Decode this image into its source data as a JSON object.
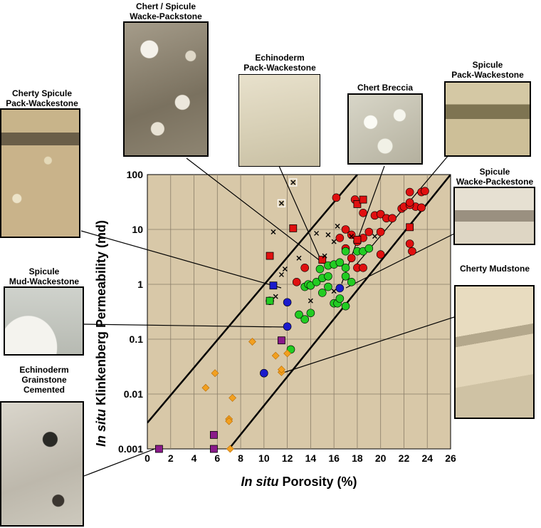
{
  "samples": [
    {
      "name": "chert-spicule-wacke-packstone",
      "line1": "Chert / Spicule",
      "line2": "Wacke-Packstone"
    },
    {
      "name": "echinoderm-pack-wackestone",
      "line1": "Echinoderm",
      "line2": "Pack-Wackestone"
    },
    {
      "name": "chert-breccia",
      "line1": "Chert Breccia",
      "line2": ""
    },
    {
      "name": "spicule-pack-wackestone",
      "line1": "Spicule",
      "line2": "Pack-Wackestone"
    },
    {
      "name": "cherty-spicule-pack-wackestone",
      "line1": "Cherty Spicule",
      "line2": "Pack-Wackestone"
    },
    {
      "name": "spicule-wacke-packestone",
      "line1": "Spicule",
      "line2": "Wacke-Packestone"
    },
    {
      "name": "spicule-mud-wackestone",
      "line1": "Spicule",
      "line2": "Mud-Wackestone"
    },
    {
      "name": "cherty-mudstone",
      "line1": "Cherty Mudstone",
      "line2": ""
    },
    {
      "name": "echinoderm-grainstone-cemented",
      "line1": "Echinoderm",
      "line2": "Grainstone",
      "line3": "Cemented"
    }
  ],
  "colors": {
    "plot_bg": "#d8c8a8",
    "grid": "#8a7d68",
    "red": "#e01010",
    "green": "#22cc22",
    "blue": "#1a1acc",
    "orange": "#f2a020",
    "purple": "#8a1a8a"
  },
  "chart_data": {
    "type": "scatter",
    "title": "",
    "xlabel_italic": "In situ",
    "xlabel_rest": "Porosity (%)",
    "ylabel_italic": "In situ",
    "ylabel_rest": "Klinkenberg Permeability (md)",
    "xlim": [
      0,
      26
    ],
    "ylim_log": [
      0.001,
      100
    ],
    "x_ticks": [
      "0",
      "2",
      "4",
      "6",
      "8",
      "10",
      "12",
      "14",
      "16",
      "18",
      "20",
      "22",
      "24",
      "26"
    ],
    "y_ticks": [
      "0.001",
      "0.01",
      "0.1",
      "1",
      "10",
      "100"
    ],
    "grid": true,
    "trend_lines": [
      {
        "x": [
          0,
          18
        ],
        "y": [
          0.003,
          100
        ]
      },
      {
        "x": [
          7,
          26
        ],
        "y": [
          0.001,
          100
        ]
      }
    ],
    "series": [
      {
        "marker": "circle",
        "color": "red",
        "points": [
          [
            16.2,
            38
          ],
          [
            17.8,
            35
          ],
          [
            18.5,
            20
          ],
          [
            19.5,
            18
          ],
          [
            20,
            19
          ],
          [
            20.5,
            16
          ],
          [
            21,
            16
          ],
          [
            21.8,
            24
          ],
          [
            22,
            26
          ],
          [
            22.5,
            48
          ],
          [
            23,
            26
          ],
          [
            23.5,
            48
          ],
          [
            23.8,
            50
          ],
          [
            23.5,
            25
          ],
          [
            22.5,
            28
          ],
          [
            22.5,
            31
          ],
          [
            17,
            10
          ],
          [
            17.5,
            8
          ],
          [
            18,
            6
          ],
          [
            18.5,
            7
          ],
          [
            19,
            9
          ],
          [
            20,
            9
          ],
          [
            20,
            3.5
          ],
          [
            22.5,
            5.5
          ],
          [
            22.7,
            4
          ],
          [
            17,
            4.5
          ],
          [
            17.5,
            3
          ],
          [
            18,
            2
          ],
          [
            18.5,
            2
          ],
          [
            16.5,
            7
          ],
          [
            13.5,
            2
          ],
          [
            12.8,
            1.1
          ]
        ]
      },
      {
        "marker": "square",
        "color": "red",
        "points": [
          [
            10.5,
            3.3
          ],
          [
            12.5,
            10.5
          ],
          [
            15,
            2.8
          ],
          [
            18,
            6.5
          ],
          [
            18,
            29
          ],
          [
            18.5,
            35
          ],
          [
            22.5,
            11
          ]
        ]
      },
      {
        "marker": "circle",
        "color": "green",
        "points": [
          [
            13.5,
            0.9
          ],
          [
            13.8,
            1
          ],
          [
            14,
            0.95
          ],
          [
            14.5,
            1.1
          ],
          [
            14.8,
            1.9
          ],
          [
            15,
            1.3
          ],
          [
            15.5,
            1.4
          ],
          [
            15.5,
            2.2
          ],
          [
            16,
            2.3
          ],
          [
            16.5,
            2.5
          ],
          [
            17,
            4
          ],
          [
            17,
            2
          ],
          [
            17,
            1.4
          ],
          [
            17.5,
            1.1
          ],
          [
            18,
            4
          ],
          [
            18.5,
            4
          ],
          [
            19,
            4.5
          ],
          [
            13,
            0.28
          ],
          [
            13.5,
            0.23
          ],
          [
            14,
            0.3
          ],
          [
            15,
            0.7
          ],
          [
            15.5,
            0.9
          ],
          [
            16,
            0.45
          ],
          [
            16.3,
            0.45
          ],
          [
            16.5,
            0.55
          ],
          [
            17,
            0.4
          ],
          [
            12.3,
            0.065
          ],
          [
            10.5,
            0.5
          ]
        ]
      },
      {
        "marker": "square",
        "color": "green",
        "points": [
          [
            10.5,
            0.5
          ]
        ]
      },
      {
        "marker": "circle",
        "color": "blue",
        "points": [
          [
            12,
            0.47
          ],
          [
            12,
            0.17
          ],
          [
            10,
            0.024
          ],
          [
            16.5,
            0.85
          ]
        ]
      },
      {
        "marker": "square",
        "color": "blue",
        "points": [
          [
            10.8,
            0.95
          ]
        ]
      },
      {
        "marker": "diamond",
        "color": "orange",
        "points": [
          [
            9,
            0.09
          ],
          [
            11,
            0.05
          ],
          [
            11.5,
            0.025
          ],
          [
            11.5,
            0.028
          ],
          [
            12,
            0.055
          ],
          [
            5,
            0.013
          ],
          [
            5.8,
            0.024
          ],
          [
            7.3,
            0.0085
          ],
          [
            7,
            0.0035
          ],
          [
            7,
            0.0032
          ],
          [
            7.1,
            0.001
          ]
        ]
      },
      {
        "marker": "square",
        "color": "purple",
        "points": [
          [
            1,
            0.001
          ],
          [
            5.7,
            0.0018
          ],
          [
            5.7,
            0.001
          ],
          [
            11.5,
            0.095
          ]
        ]
      },
      {
        "marker": "cross",
        "color": "black",
        "points": [
          [
            12.5,
            72
          ],
          [
            11.5,
            30
          ],
          [
            10.8,
            9
          ],
          [
            13,
            3
          ],
          [
            11.5,
            1.5
          ],
          [
            11.8,
            1.9
          ],
          [
            11,
            0.6
          ],
          [
            15.2,
            3.3
          ],
          [
            14.5,
            8.5
          ],
          [
            15.5,
            8
          ],
          [
            16,
            6
          ],
          [
            16.3,
            11.5
          ],
          [
            16,
            0.75
          ],
          [
            14,
            0.5
          ],
          [
            19.5,
            7.5
          ],
          [
            17.5,
            7.5
          ]
        ]
      },
      {
        "marker": "cross-box",
        "color": "black",
        "points": [
          [
            12.5,
            72
          ],
          [
            11.5,
            30
          ]
        ]
      }
    ]
  }
}
